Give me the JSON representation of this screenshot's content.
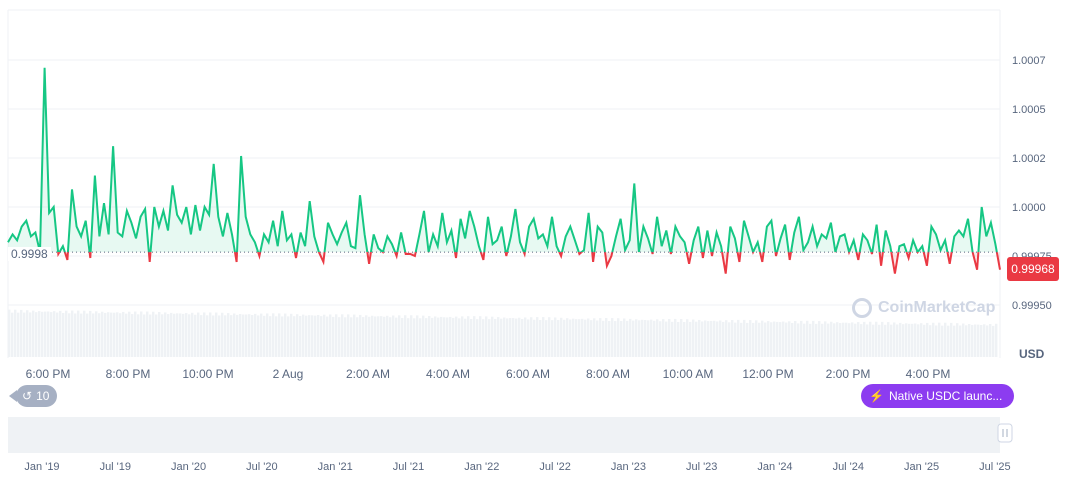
{
  "chart_data": {
    "type": "line",
    "title": "",
    "currency": "USD",
    "ylim": [
      0.9994,
      1.0008
    ],
    "y_ticks": [
      "1.0007",
      "1.0005",
      "1.0002",
      "1.0000",
      "0.99975",
      "0.99950"
    ],
    "y_tick_values": [
      1.00075,
      1.0005,
      1.00025,
      1.0,
      0.99975,
      0.9995
    ],
    "x_ticks": [
      "6:00 PM",
      "8:00 PM",
      "10:00 PM",
      "2 Aug",
      "2:00 AM",
      "4:00 AM",
      "6:00 AM",
      "8:00 AM",
      "10:00 AM",
      "12:00 PM",
      "2:00 PM",
      "4:00 PM"
    ],
    "baseline": 0.99977,
    "baseline_label": "0.9998",
    "current_price": "0.99968",
    "colors": {
      "up": "#16c784",
      "down": "#ea3943",
      "event": "#8c3cf0"
    },
    "values": [
      0.99982,
      0.99986,
      0.99983,
      0.9999,
      0.99993,
      0.99985,
      0.99987,
      0.99977,
      1.00071,
      0.99997,
      1.0,
      0.99976,
      0.9998,
      0.99973,
      1.00009,
      0.9999,
      0.99985,
      0.99993,
      0.99974,
      1.00016,
      0.99985,
      1.00002,
      0.99986,
      1.00031,
      0.99987,
      0.99985,
      0.99998,
      0.99992,
      0.99984,
      0.99995,
      0.99999,
      0.99972,
      1.0,
      0.9999,
      0.99998,
      0.99988,
      1.00011,
      0.99996,
      0.99992,
      1.0,
      0.99986,
      1.00001,
      0.99988,
      1.0,
      0.99996,
      1.00022,
      0.99995,
      0.99985,
      0.99997,
      0.99986,
      0.99972,
      1.00026,
      0.99995,
      0.99986,
      0.99982,
      0.99975,
      0.99986,
      0.99982,
      0.99993,
      0.9998,
      0.99998,
      0.99983,
      0.99986,
      0.99974,
      0.99987,
      0.9998,
      1.00003,
      0.99985,
      0.99977,
      0.99972,
      0.99992,
      0.99986,
      0.99981,
      0.99987,
      0.99992,
      0.9998,
      0.99979,
      1.00006,
      0.99986,
      0.99971,
      0.99986,
      0.99979,
      0.99977,
      0.99985,
      0.99981,
      0.99975,
      0.99987,
      0.99976,
      0.99976,
      0.99975,
      0.99986,
      0.99998,
      0.99977,
      0.99986,
      0.9998,
      0.99997,
      0.99982,
      0.99988,
      0.99974,
      0.99994,
      0.99984,
      0.99998,
      0.9999,
      0.9998,
      0.99973,
      0.99995,
      0.99981,
      0.99983,
      0.9999,
      0.99975,
      0.99985,
      0.99999,
      0.99982,
      0.99976,
      0.9999,
      0.99994,
      0.99984,
      0.99986,
      0.9998,
      0.99995,
      0.9998,
      0.99975,
      0.99985,
      0.9999,
      0.99983,
      0.99976,
      0.99978,
      0.99997,
      0.99972,
      0.9999,
      0.99987,
      0.9997,
      0.99975,
      0.99985,
      0.99994,
      0.99978,
      0.99983,
      1.00012,
      0.99977,
      0.9999,
      0.99984,
      0.99976,
      0.99995,
      0.9998,
      0.99988,
      0.99976,
      0.9999,
      0.99985,
      0.99982,
      0.99971,
      0.99983,
      0.9999,
      0.99974,
      0.99988,
      0.99975,
      0.99987,
      0.9998,
      0.99966,
      0.9999,
      0.99984,
      0.99972,
      0.99993,
      0.99985,
      0.99977,
      0.99982,
      0.99972,
      0.9999,
      0.99993,
      0.99975,
      0.99984,
      0.99991,
      0.99973,
      0.99987,
      0.99995,
      0.99978,
      0.99982,
      0.9999,
      0.9998,
      0.99986,
      0.99984,
      0.99992,
      0.99977,
      0.99985,
      0.99986,
      0.99977,
      0.99983,
      0.99973,
      0.99986,
      0.99983,
      0.99976,
      0.99991,
      0.9997,
      0.99988,
      0.9998,
      0.99966,
      0.9998,
      0.99981,
      0.99974,
      0.99983,
      0.99977,
      0.9998,
      0.9997,
      0.9999,
      0.99986,
      0.99978,
      0.99983,
      0.99971,
      0.99985,
      0.99988,
      0.99985,
      0.99994,
      0.99977,
      0.99968,
      1.0,
      0.99985,
      0.99992,
      0.99981,
      0.99968
    ]
  },
  "navigator": {
    "x_ticks": [
      "Jan '19",
      "Jul '19",
      "Jan '20",
      "Jul '20",
      "Jan '21",
      "Jul '21",
      "Jan '22",
      "Jul '22",
      "Jan '23",
      "Jul '23",
      "Jan '24",
      "Jul '24",
      "Jan '25",
      "Jul '25"
    ]
  },
  "history_badge": "10",
  "event_badge": "Native USDC launc...",
  "watermark": "CoinMarketCap"
}
